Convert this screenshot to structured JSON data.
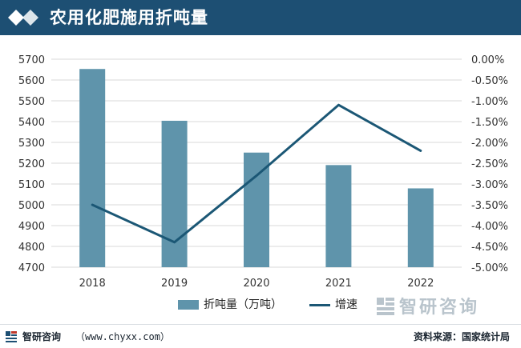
{
  "header": {
    "title": "农用化肥施用折吨量"
  },
  "chart_data": {
    "type": "bar",
    "categories": [
      "2018",
      "2019",
      "2020",
      "2021",
      "2022"
    ],
    "series": [
      {
        "name": "折吨量（万吨）",
        "type": "bar",
        "axis": "left",
        "values": [
          5653,
          5404,
          5251,
          5191,
          5079
        ]
      },
      {
        "name": "增速",
        "type": "line",
        "axis": "right",
        "values": [
          -3.5,
          -4.4,
          -2.8,
          -1.1,
          -2.2
        ]
      }
    ],
    "left_axis": {
      "min": 4700,
      "max": 5700,
      "step": 100,
      "ticks": [
        "4700",
        "4800",
        "4900",
        "5000",
        "5100",
        "5200",
        "5300",
        "5400",
        "5500",
        "5600",
        "5700"
      ]
    },
    "right_axis": {
      "min": -5.0,
      "max": 0.0,
      "step": 0.5,
      "ticks": [
        "-5.00%",
        "-4.50%",
        "-4.00%",
        "-3.50%",
        "-3.00%",
        "-2.50%",
        "-2.00%",
        "-1.50%",
        "-1.00%",
        "-0.50%",
        "0.00%"
      ]
    },
    "grid": true,
    "legend": "bottom",
    "colors": {
      "bar": "#5f94ab",
      "line": "#1b5775"
    }
  },
  "legend": {
    "bar_label": "折吨量（万吨）",
    "line_label": "增速"
  },
  "watermark": {
    "name": "智研咨询"
  },
  "footer": {
    "left": "智研咨询",
    "url": "（www.chyxx.com）",
    "right": "资料来源：国家统计局"
  }
}
